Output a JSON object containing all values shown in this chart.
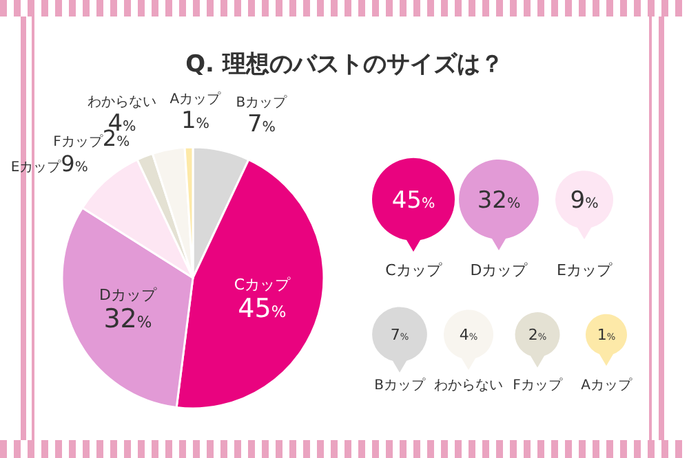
{
  "chart_data": {
    "type": "pie",
    "title": "Q. 理想のバストのサイズは？",
    "categories": [
      "Bカップ",
      "Cカップ",
      "Dカップ",
      "Eカップ",
      "Fカップ",
      "わからない",
      "Aカップ"
    ],
    "values": [
      7,
      45,
      32,
      9,
      2,
      4,
      1
    ],
    "colors": [
      "#d9d9d9",
      "#e9037f",
      "#e29ad6",
      "#fde6f3",
      "#e4e1d3",
      "#f8f5ef",
      "#fde9a8"
    ],
    "value_labels": [
      "7%",
      "45%",
      "32%",
      "9%",
      "2%",
      "4%",
      "1%"
    ]
  }
}
